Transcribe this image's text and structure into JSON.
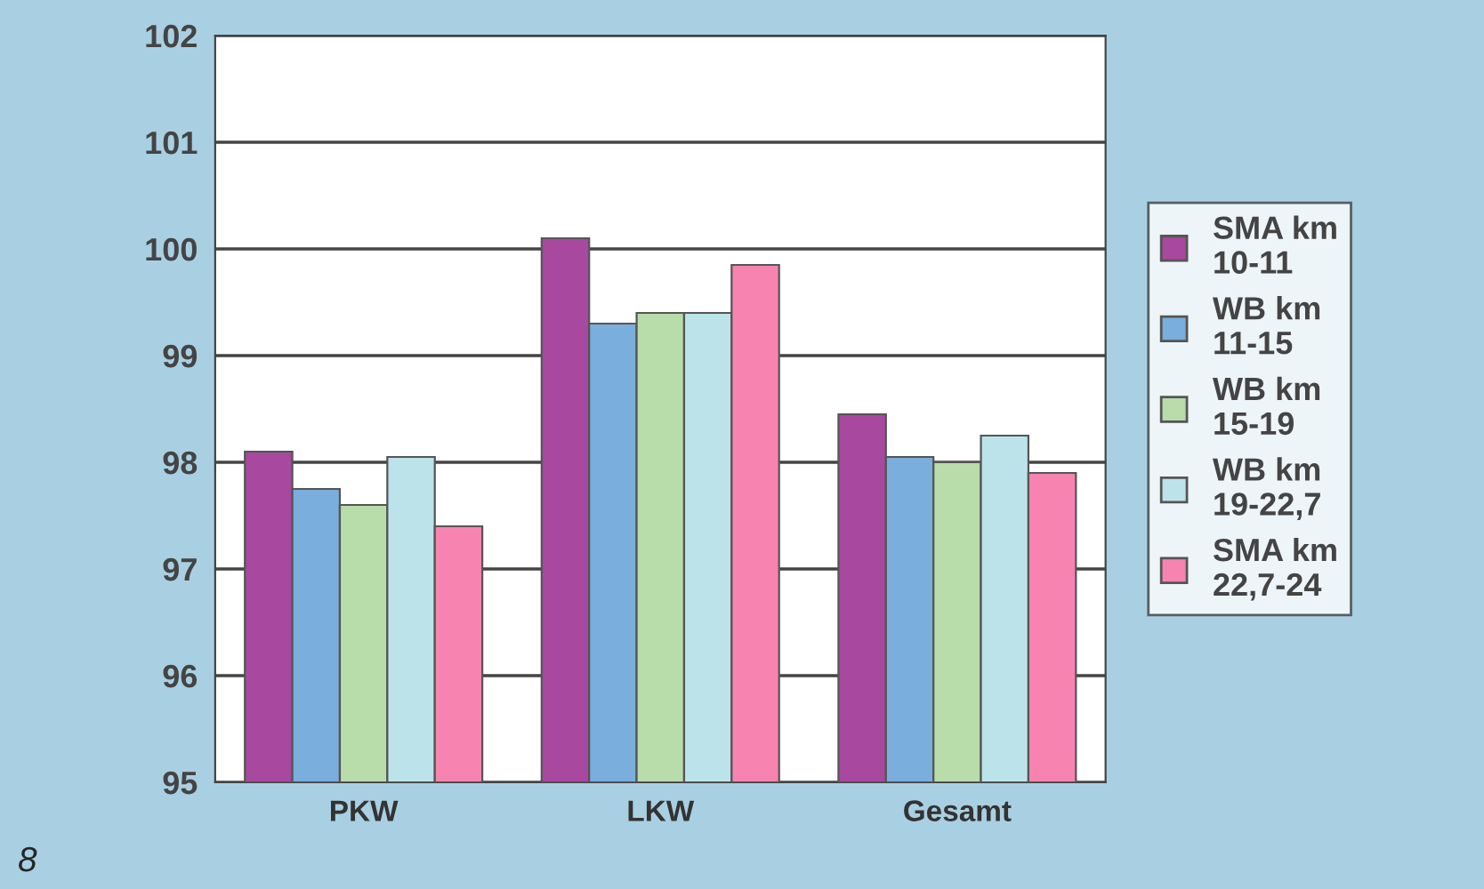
{
  "chart_data": {
    "type": "bar",
    "categories": [
      "PKW",
      "LKW",
      "Gesamt"
    ],
    "series": [
      {
        "name": "SMA km\n10-11",
        "color": "#a8489f",
        "values": [
          98.1,
          100.1,
          98.45
        ]
      },
      {
        "name": "WB km\n11-15",
        "color": "#7aaedc",
        "values": [
          97.75,
          99.3,
          98.05
        ]
      },
      {
        "name": "WB km\n15-19",
        "color": "#b8dcaa",
        "values": [
          97.6,
          99.4,
          98.0
        ]
      },
      {
        "name": "WB km\n19-22,7",
        "color": "#bde3ea",
        "values": [
          98.05,
          99.4,
          98.25
        ]
      },
      {
        "name": "SMA km\n22,7-24",
        "color": "#f784b0",
        "values": [
          97.4,
          99.85,
          97.9
        ]
      }
    ],
    "ylim": [
      95,
      102
    ],
    "yticks": [
      95,
      96,
      97,
      98,
      99,
      100,
      101,
      102
    ],
    "grid": "y",
    "legend": "right",
    "annotations": [
      "8"
    ]
  }
}
